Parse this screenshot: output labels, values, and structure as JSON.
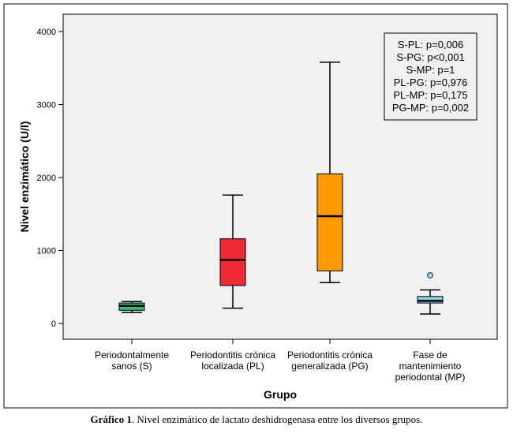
{
  "chart_data": {
    "type": "boxplot",
    "xlabel": "Grupo",
    "ylabel": "Nivel enzimático (U/l)",
    "ylim": [
      -200,
      4300
    ],
    "yticks": [
      0,
      1000,
      2000,
      3000,
      4000
    ],
    "categories": [
      [
        "Periodontalmente",
        "sanos (S)"
      ],
      [
        "Periodontitis crónica",
        "localizada (PL)"
      ],
      [
        "Periodontitis crónica",
        "generalizada (PG)"
      ],
      [
        "Fase de",
        "mantenimiento",
        "periodontal (MP)"
      ]
    ],
    "boxes": [
      {
        "min": 150,
        "q1": 180,
        "median": 240,
        "q3": 280,
        "max": 300,
        "outliers": [],
        "color": "#2bbf7a"
      },
      {
        "min": 210,
        "q1": 520,
        "median": 870,
        "q3": 1160,
        "max": 1760,
        "outliers": [],
        "color": "#ee2a33"
      },
      {
        "min": 560,
        "q1": 720,
        "median": 1470,
        "q3": 2050,
        "max": 3580,
        "outliers": [],
        "color": "#ff9900"
      },
      {
        "min": 130,
        "q1": 280,
        "median": 310,
        "q3": 370,
        "max": 460,
        "outliers": [
          660
        ],
        "color": "#8ecfe8"
      }
    ],
    "annotations": [
      "S-PL: p=0,006",
      "S-PG: p<0,001",
      "S-MP: p=1",
      "PL-PG: p=0,976",
      "PL-MP: p=0,175",
      "PG-MP: p=0,002"
    ],
    "plot_background": "#f0f0f0",
    "grid": false
  },
  "caption": {
    "label": "Gráfico 1",
    "text": ". Nivel enzimático de lactato deshidrogenasa entre los diversos grupos."
  }
}
